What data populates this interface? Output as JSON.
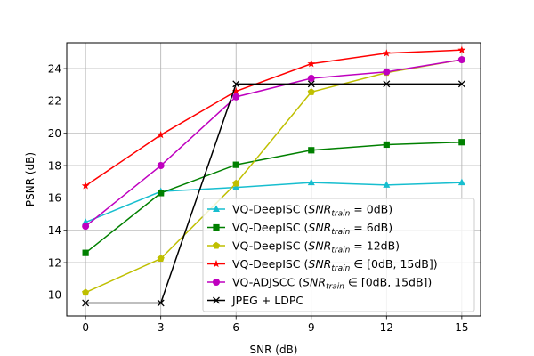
{
  "chart_data": {
    "type": "line",
    "title": "",
    "xlabel": "SNR (dB)",
    "ylabel": "PSNR (dB)",
    "x": [
      0,
      3,
      6,
      9,
      12,
      15
    ],
    "xlim": [
      -0.75,
      15.75
    ],
    "ylim": [
      8.7,
      25.6
    ],
    "xticks": [
      0,
      3,
      6,
      9,
      12,
      15
    ],
    "yticks": [
      10,
      12,
      14,
      16,
      18,
      20,
      22,
      24
    ],
    "grid": true,
    "legend_position": "lower-right",
    "series": [
      {
        "name": "VQ-DeepISC (SNR_train = 0dB)",
        "legend": {
          "prefix": "VQ-DeepISC (",
          "italic": "SNR",
          "sub": "train",
          "suffix": " = 0dB)"
        },
        "color": "#17becf",
        "marker": "triangle",
        "values": [
          14.5,
          16.4,
          16.65,
          16.95,
          16.8,
          16.95
        ]
      },
      {
        "name": "VQ-DeepISC (SNR_train = 6dB)",
        "legend": {
          "prefix": "VQ-DeepISC (",
          "italic": "SNR",
          "sub": "train",
          "suffix": " = 6dB)"
        },
        "color": "#008000",
        "marker": "square",
        "values": [
          12.6,
          16.3,
          18.05,
          18.95,
          19.3,
          19.45
        ]
      },
      {
        "name": "VQ-DeepISC (SNR_train = 12dB)",
        "legend": {
          "prefix": "VQ-DeepISC (",
          "italic": "SNR",
          "sub": "train",
          "suffix": " = 12dB)"
        },
        "color": "#bfbf00",
        "marker": "pentagon",
        "values": [
          10.15,
          12.25,
          16.9,
          22.55,
          23.75,
          24.55
        ]
      },
      {
        "name": "VQ-DeepISC (SNR_train ∈ [0dB, 15dB])",
        "legend": {
          "prefix": "VQ-DeepISC (",
          "italic": "SNR",
          "sub": "train",
          "suffix": " ∈ [0dB, 15dB])"
        },
        "color": "#ff0000",
        "marker": "star",
        "values": [
          16.75,
          19.9,
          22.6,
          24.3,
          24.95,
          25.15
        ]
      },
      {
        "name": "VQ-ADJSCC (SNR_train ∈ [0dB, 15dB])",
        "legend": {
          "prefix": "VQ-ADJSCC (",
          "italic": "SNR",
          "sub": "train",
          "suffix": " ∈ [0dB, 15dB])"
        },
        "color": "#bf00bf",
        "marker": "circle",
        "values": [
          14.25,
          18.0,
          22.25,
          23.4,
          23.8,
          24.55
        ]
      },
      {
        "name": "JPEG + LDPC",
        "legend": {
          "prefix": "JPEG + LDPC",
          "italic": "",
          "sub": "",
          "suffix": ""
        },
        "color": "#000000",
        "marker": "x",
        "values": [
          9.5,
          9.5,
          23.05,
          23.05,
          23.05,
          23.05
        ]
      }
    ]
  }
}
